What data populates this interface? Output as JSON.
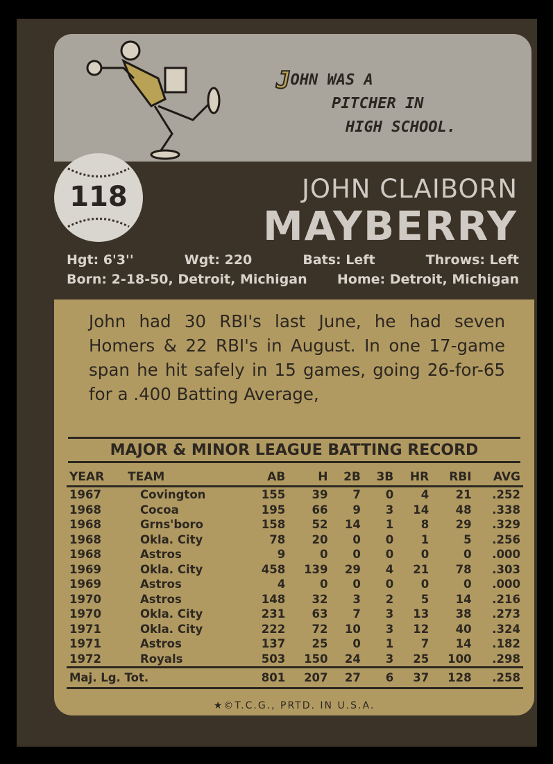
{
  "card": {
    "number": "118",
    "cartoon_caption": {
      "initial": "J",
      "line1": "OHN WAS A",
      "line2": "PITCHER IN",
      "line3": "HIGH SCHOOL."
    },
    "name_first": "JOHN CLAIBORN",
    "name_last": "MAYBERRY",
    "height": "Hgt: 6'3''",
    "weight": "Wgt: 220",
    "bats": "Bats: Left",
    "throws": "Throws: Left",
    "born": "Born: 2-18-50, Detroit, Michigan",
    "home": "Home: Detroit, Michigan",
    "bio": "John had 30 RBI's last June, he had seven Homers & 22 RBI's in August. In one 17-game span he hit safely in 15 games, going 26-for-65 for a .400 Batting Average,",
    "record_title": "MAJOR & MINOR LEAGUE BATTING RECORD",
    "copyright": "★©T.C.G., PRTD. IN U.S.A."
  },
  "table": {
    "headers": [
      "YEAR",
      "TEAM",
      "AB",
      "H",
      "2B",
      "3B",
      "HR",
      "RBI",
      "AVG"
    ],
    "rows": [
      [
        "1967",
        "Covington",
        "155",
        "39",
        "7",
        "0",
        "4",
        "21",
        ".252"
      ],
      [
        "1968",
        "Cocoa",
        "195",
        "66",
        "9",
        "3",
        "14",
        "48",
        ".338"
      ],
      [
        "1968",
        "Grns'boro",
        "158",
        "52",
        "14",
        "1",
        "8",
        "29",
        ".329"
      ],
      [
        "1968",
        "Okla. City",
        "78",
        "20",
        "0",
        "0",
        "1",
        "5",
        ".256"
      ],
      [
        "1968",
        "Astros",
        "9",
        "0",
        "0",
        "0",
        "0",
        "0",
        ".000"
      ],
      [
        "1969",
        "Okla. City",
        "458",
        "139",
        "29",
        "4",
        "21",
        "78",
        ".303"
      ],
      [
        "1969",
        "Astros",
        "4",
        "0",
        "0",
        "0",
        "0",
        "0",
        ".000"
      ],
      [
        "1970",
        "Astros",
        "148",
        "32",
        "3",
        "2",
        "5",
        "14",
        ".216"
      ],
      [
        "1970",
        "Okla. City",
        "231",
        "63",
        "7",
        "3",
        "13",
        "38",
        ".273"
      ],
      [
        "1971",
        "Okla. City",
        "222",
        "72",
        "10",
        "3",
        "12",
        "40",
        ".324"
      ],
      [
        "1971",
        "Astros",
        "137",
        "25",
        "0",
        "1",
        "7",
        "14",
        ".182"
      ],
      [
        "1972",
        "Royals",
        "503",
        "150",
        "24",
        "3",
        "25",
        "100",
        ".298"
      ]
    ],
    "total": [
      "Maj. Lg. Tot.",
      "801",
      "207",
      "27",
      "6",
      "37",
      "128",
      ".258"
    ]
  }
}
